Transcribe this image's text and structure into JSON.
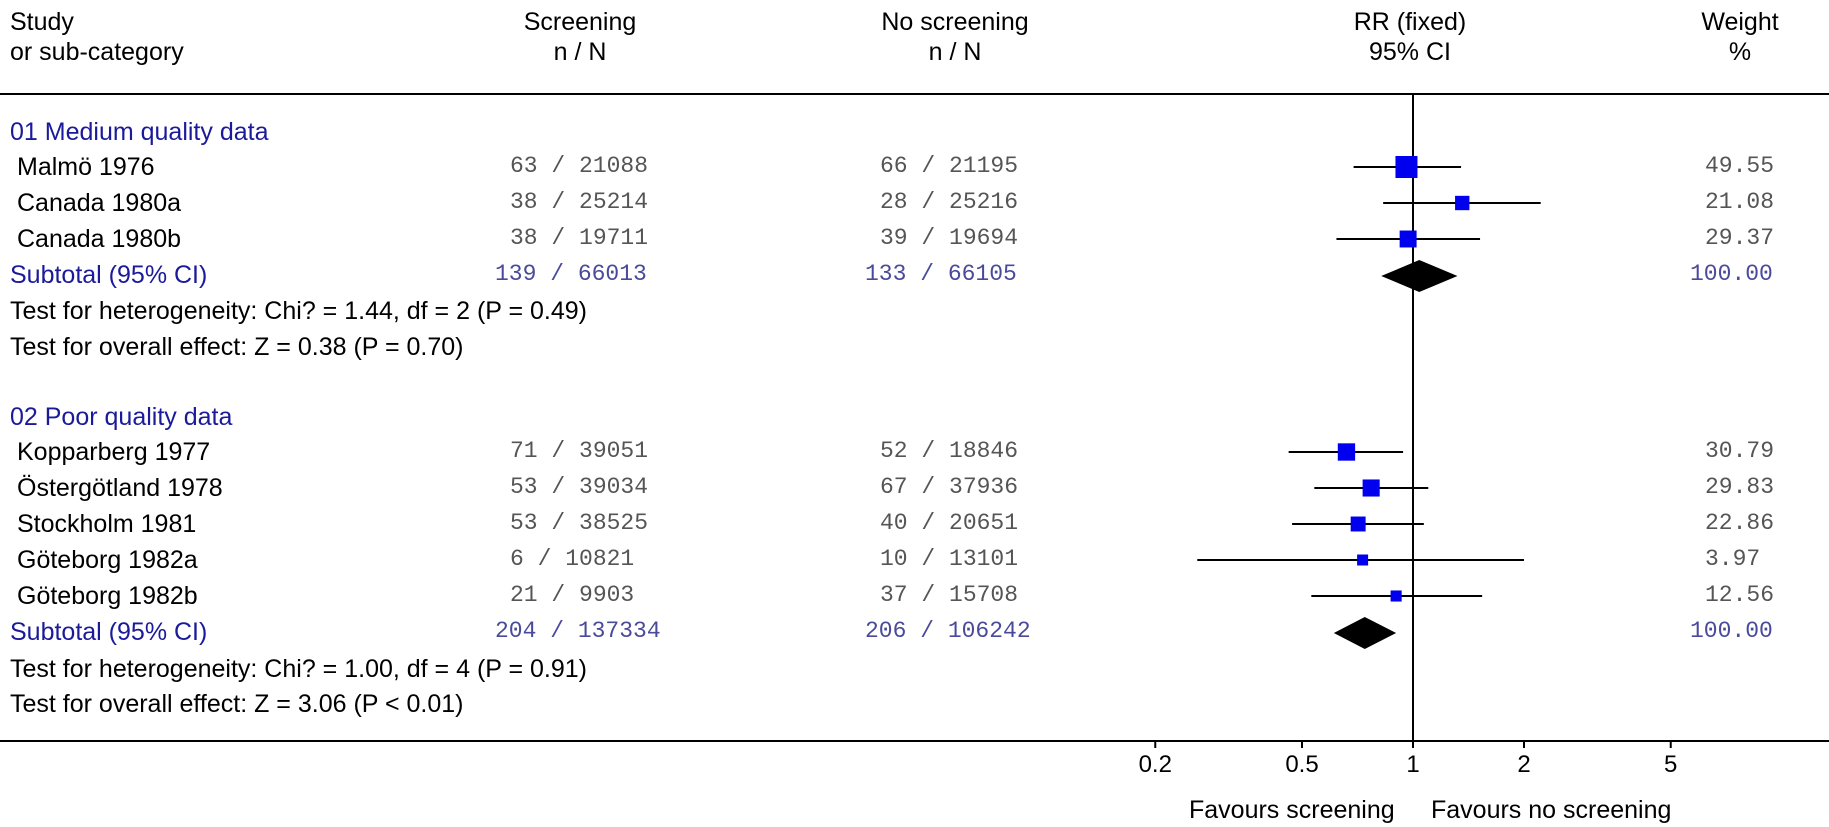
{
  "headers": {
    "study": [
      "Study",
      "or sub-category"
    ],
    "screening": [
      "Screening",
      "n / N"
    ],
    "no_screening": [
      "No screening",
      "n / N"
    ],
    "rr": [
      "RR (fixed)",
      "95% CI"
    ],
    "weight": [
      "Weight",
      "%"
    ]
  },
  "chart_data": {
    "type": "forest",
    "scale": "log",
    "xlim": [
      0.2,
      5
    ],
    "null_value": 1,
    "ticks": [
      0.2,
      0.5,
      1,
      2,
      5
    ],
    "tick_labels": [
      "0.2",
      "0.5",
      "1",
      "2",
      "5"
    ],
    "favours_left": "Favours screening",
    "favours_right": "Favours no screening",
    "colors": {
      "square": "#0000ee",
      "diamond": "#000000",
      "line": "#000000"
    },
    "groups": [
      {
        "label": "01 Medium quality data",
        "studies": [
          {
            "name": "Malmö 1976",
            "screen": "63 / 21088",
            "noscreen": "66 / 21195",
            "rr": 0.96,
            "lo": 0.69,
            "hi": 1.35,
            "weight": "49.55",
            "w": 49.55
          },
          {
            "name": "Canada 1980a",
            "screen": "38 / 25214",
            "noscreen": "28 / 25216",
            "rr": 1.36,
            "lo": 0.83,
            "hi": 2.22,
            "weight": "21.08",
            "w": 21.08
          },
          {
            "name": "Canada 1980b",
            "screen": "38 / 19711",
            "noscreen": "39 / 19694",
            "rr": 0.97,
            "lo": 0.62,
            "hi": 1.52,
            "weight": "29.37",
            "w": 29.37
          }
        ],
        "subtotal": {
          "label": "Subtotal (95% CI)",
          "screen": "139 / 66013",
          "noscreen": "133 / 66105",
          "rr": 1.04,
          "lo": 0.82,
          "hi": 1.32,
          "weight": "100.00"
        },
        "heterogeneity": "Test for heterogeneity: Chi? = 1.44, df = 2 (P = 0.49)",
        "overall": "Test for overall effect: Z = 0.38 (P = 0.70)"
      },
      {
        "label": "02 Poor quality data",
        "studies": [
          {
            "name": "Kopparberg 1977",
            "screen": "71 / 39051",
            "noscreen": "52 / 18846",
            "rr": 0.66,
            "lo": 0.46,
            "hi": 0.94,
            "weight": "30.79",
            "w": 30.79
          },
          {
            "name": "Östergötland 1978",
            "screen": "53 / 39034",
            "noscreen": "67 / 37936",
            "rr": 0.77,
            "lo": 0.54,
            "hi": 1.1,
            "weight": "29.83",
            "w": 29.83
          },
          {
            "name": "Stockholm 1981",
            "screen": "53 / 38525",
            "noscreen": "40 / 20651",
            "rr": 0.71,
            "lo": 0.47,
            "hi": 1.07,
            "weight": "22.86",
            "w": 22.86
          },
          {
            "name": "Göteborg 1982a",
            "screen": "6 / 10821",
            "noscreen": "10 / 13101",
            "rr": 0.73,
            "lo": 0.26,
            "hi": 2.0,
            "weight": "3.97",
            "w": 3.97
          },
          {
            "name": "Göteborg 1982b",
            "screen": "21 / 9903",
            "noscreen": "37 / 15708",
            "rr": 0.9,
            "lo": 0.53,
            "hi": 1.54,
            "weight": "12.56",
            "w": 12.56
          }
        ],
        "subtotal": {
          "label": "Subtotal (95% CI)",
          "screen": "204 / 137334",
          "noscreen": "206 / 106242",
          "rr": 0.74,
          "lo": 0.61,
          "hi": 0.9,
          "weight": "100.00"
        },
        "heterogeneity": "Test for heterogeneity: Chi? = 1.00, df = 4 (P = 0.91)",
        "overall": "Test for overall effect: Z = 3.06 (P < 0.01)"
      }
    ]
  }
}
